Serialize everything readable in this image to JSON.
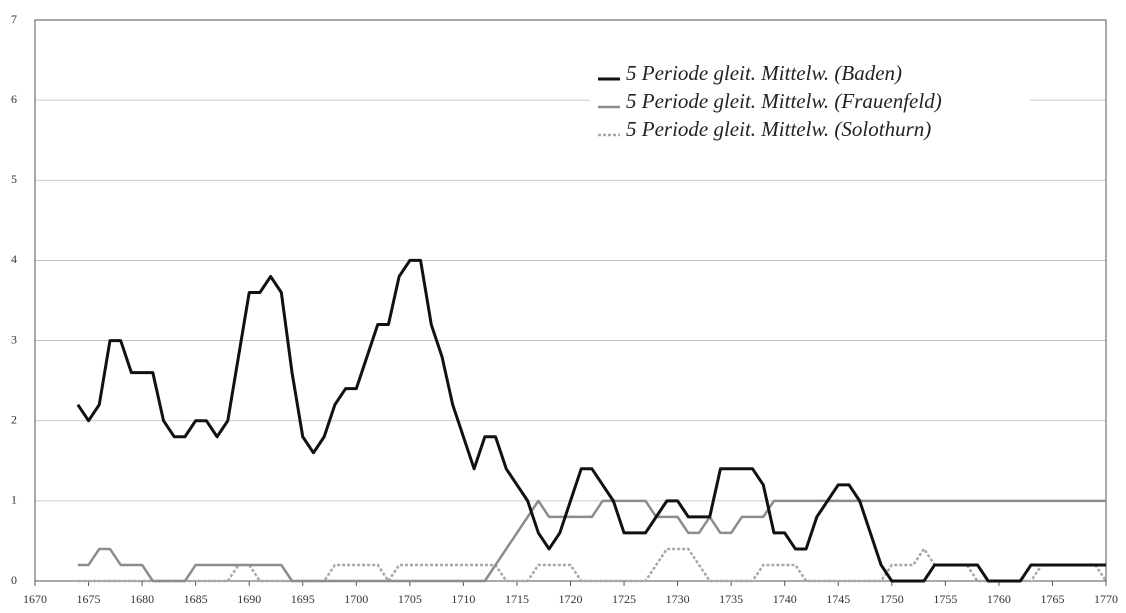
{
  "chart_data": {
    "type": "line",
    "x": [
      1674,
      1675,
      1676,
      1677,
      1678,
      1679,
      1680,
      1681,
      1682,
      1683,
      1684,
      1685,
      1686,
      1687,
      1688,
      1689,
      1690,
      1691,
      1692,
      1693,
      1694,
      1695,
      1696,
      1697,
      1698,
      1699,
      1700,
      1701,
      1702,
      1703,
      1704,
      1705,
      1706,
      1707,
      1708,
      1709,
      1710,
      1711,
      1712,
      1713,
      1714,
      1715,
      1716,
      1717,
      1718,
      1719,
      1720,
      1721,
      1722,
      1723,
      1724,
      1725,
      1726,
      1727,
      1728,
      1729,
      1730,
      1731,
      1732,
      1733,
      1734,
      1735,
      1736,
      1737,
      1738,
      1739,
      1740,
      1741,
      1742,
      1743,
      1744,
      1745,
      1746,
      1747,
      1748,
      1749,
      1750,
      1751,
      1752,
      1753,
      1754,
      1755,
      1756,
      1757,
      1758,
      1759,
      1760,
      1761,
      1762,
      1763,
      1764,
      1765,
      1766,
      1767,
      1768,
      1769,
      1770
    ],
    "series": [
      {
        "name": "5 Periode gleit. Mittelw. (Baden)",
        "color": "#111111",
        "dash": "none",
        "width": 3,
        "values": [
          2.2,
          2.0,
          2.2,
          3.0,
          3.0,
          2.6,
          2.6,
          2.6,
          2.0,
          1.8,
          1.8,
          2.0,
          2.0,
          1.8,
          2.0,
          2.8,
          3.6,
          3.6,
          3.8,
          3.6,
          2.6,
          1.8,
          1.6,
          1.8,
          2.2,
          2.4,
          2.4,
          2.8,
          3.2,
          3.2,
          3.8,
          4.0,
          4.0,
          3.2,
          2.8,
          2.2,
          1.8,
          1.4,
          1.8,
          1.8,
          1.4,
          1.2,
          1.0,
          0.6,
          0.4,
          0.6,
          1.0,
          1.4,
          1.4,
          1.2,
          1.0,
          0.6,
          0.6,
          0.6,
          0.8,
          1.0,
          1.0,
          0.8,
          0.8,
          0.8,
          1.4,
          1.4,
          1.4,
          1.4,
          1.2,
          0.6,
          0.6,
          0.4,
          0.4,
          0.8,
          1.0,
          1.2,
          1.2,
          1.0,
          0.6,
          0.2,
          0,
          0,
          0,
          0,
          0.2,
          0.2,
          0.2,
          0.2,
          0.2,
          0,
          0,
          0,
          0,
          0.2,
          0.2,
          0.2,
          0.2,
          0.2,
          0.2,
          0.2,
          0.2
        ]
      },
      {
        "name": "5 Periode gleit. Mittelw. (Frauenfeld)",
        "color": "#8c8c8c",
        "dash": "none",
        "width": 2.5,
        "values": [
          0.2,
          0.2,
          0.4,
          0.4,
          0.2,
          0.2,
          0.2,
          0,
          0,
          0,
          0,
          0.2,
          0.2,
          0.2,
          0.2,
          0.2,
          0.2,
          0.2,
          0.2,
          0.2,
          0,
          0,
          0,
          0,
          0,
          0,
          0,
          0,
          0,
          0,
          0,
          0,
          0,
          0,
          0,
          0,
          0,
          0,
          0,
          0.2,
          0.4,
          0.6,
          0.8,
          1.0,
          0.8,
          0.8,
          0.8,
          0.8,
          0.8,
          1.0,
          1.0,
          1.0,
          1.0,
          1.0,
          0.8,
          0.8,
          0.8,
          0.6,
          0.6,
          0.8,
          0.6,
          0.6,
          0.8,
          0.8,
          0.8,
          1.0,
          1.0,
          1.0,
          1.0,
          1.0,
          1,
          1,
          1,
          1,
          1,
          1,
          1,
          1,
          1,
          1,
          1,
          1,
          1,
          1,
          1,
          1,
          1,
          1,
          1,
          1,
          1,
          1,
          1,
          1,
          1,
          1,
          1
        ]
      },
      {
        "name": "5 Periode gleit. Mittelw. (Solothurn)",
        "color": "#a8a8a8",
        "dash": "3 2",
        "width": 2.5,
        "values": [
          0,
          0,
          0,
          0,
          0,
          0,
          0,
          0,
          0,
          0,
          0,
          0,
          0,
          0,
          0,
          0.2,
          0.2,
          0,
          0,
          0,
          0,
          0,
          0,
          0,
          0.2,
          0.2,
          0.2,
          0.2,
          0.2,
          0,
          0.2,
          0.2,
          0.2,
          0.2,
          0.2,
          0.2,
          0.2,
          0.2,
          0.2,
          0.2,
          0,
          0,
          0,
          0.2,
          0.2,
          0.2,
          0.2,
          0,
          0,
          0,
          0,
          0,
          0,
          0,
          0.2,
          0.4,
          0.4,
          0.4,
          0.2,
          0,
          0,
          0,
          0,
          0,
          0.2,
          0.2,
          0.2,
          0.2,
          0,
          0,
          0,
          0,
          0,
          0,
          0,
          0,
          0.2,
          0.2,
          0.2,
          0.4,
          0.2,
          0.2,
          0.2,
          0.2,
          0,
          0,
          0,
          0,
          0,
          0,
          0.2,
          0.2,
          0.2,
          0.2,
          0.2,
          0.2,
          0
        ]
      }
    ],
    "xlim": [
      1670,
      1770
    ],
    "xticks": [
      1670,
      1675,
      1680,
      1685,
      1690,
      1695,
      1700,
      1705,
      1710,
      1715,
      1720,
      1725,
      1730,
      1735,
      1740,
      1745,
      1750,
      1755,
      1760,
      1765,
      1770
    ],
    "ylim": [
      0,
      7
    ],
    "yticks": [
      0,
      1,
      2,
      3,
      4,
      5,
      6,
      7
    ],
    "grid": true,
    "legend": "upper right"
  }
}
